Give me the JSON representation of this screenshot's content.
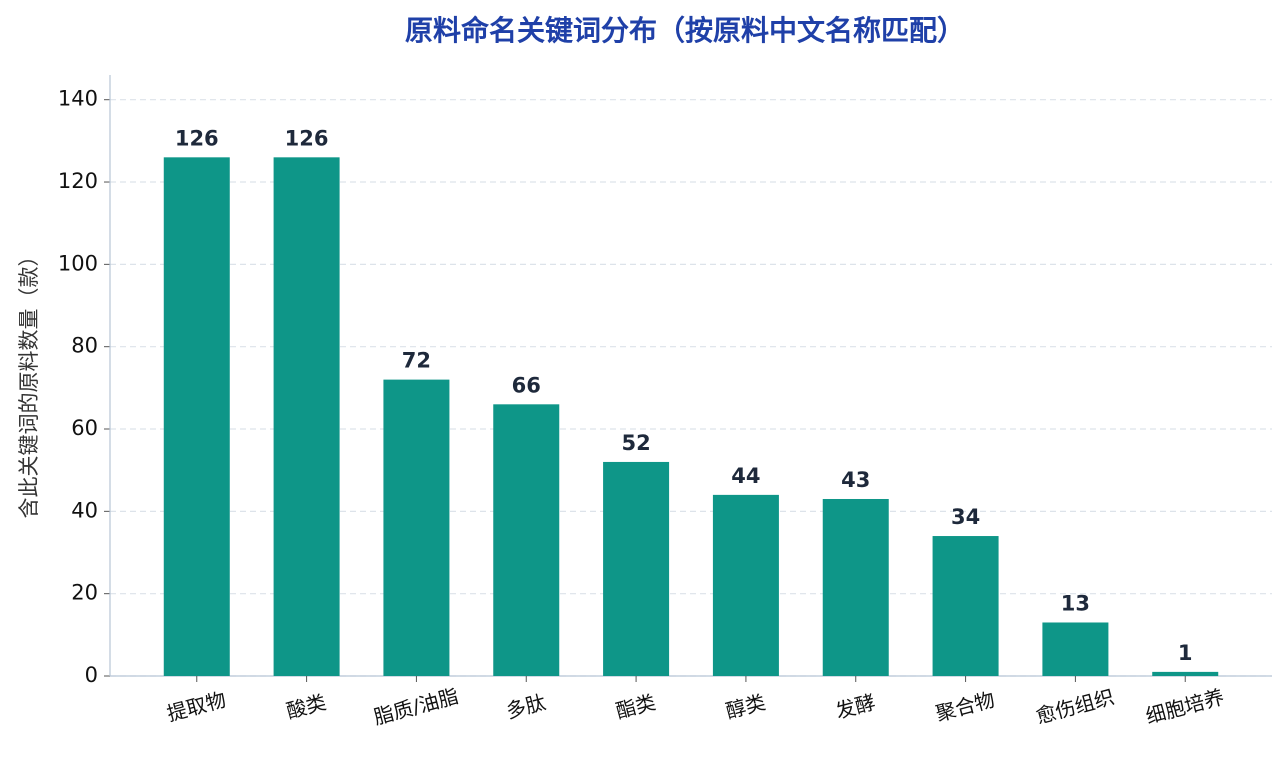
{
  "chart_data": {
    "type": "bar",
    "title": "原料命名关键词分布（按原料中文名称匹配）",
    "y_label": "含此关键词的原料数量（款）",
    "categories": [
      "提取物",
      "酸类",
      "脂质/油脂",
      "多肽",
      "酯类",
      "醇类",
      "发酵",
      "聚合物",
      "愈伤组织",
      "细胞培养"
    ],
    "values": [
      126,
      126,
      72,
      66,
      52,
      44,
      43,
      34,
      13,
      1
    ],
    "color": "#0e9688",
    "ylim": [
      0,
      146
    ],
    "yticks": [
      0,
      20,
      40,
      60,
      80,
      100,
      120,
      140
    ],
    "grid": true
  }
}
